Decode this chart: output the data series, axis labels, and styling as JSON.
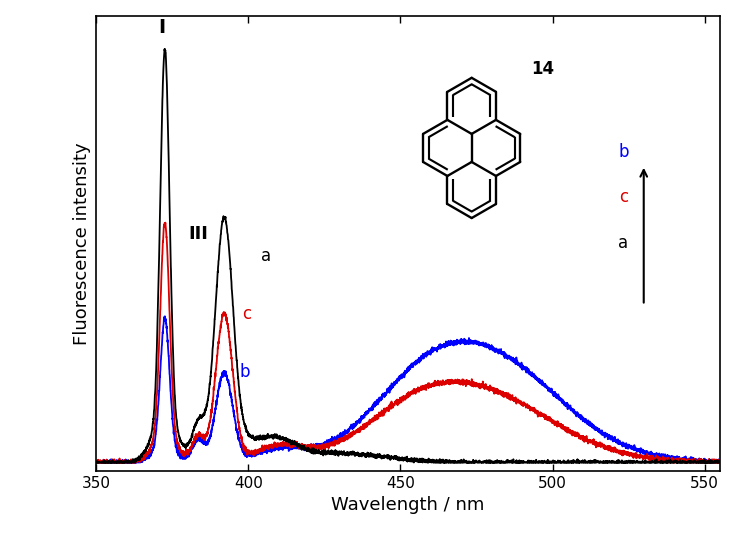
{
  "title": "",
  "xlabel": "Wavelength / nm",
  "ylabel": "Fluorescence intensity",
  "xlim": [
    350,
    555
  ],
  "ylim": [
    -0.02,
    1.08
  ],
  "xticks": [
    350,
    400,
    450,
    500,
    550
  ],
  "colors": {
    "a": "#000000",
    "b": "#0000ff",
    "c": "#dd0000"
  },
  "background_color": "#ffffff",
  "figsize": [
    7.42,
    5.35
  ],
  "dpi": 100
}
